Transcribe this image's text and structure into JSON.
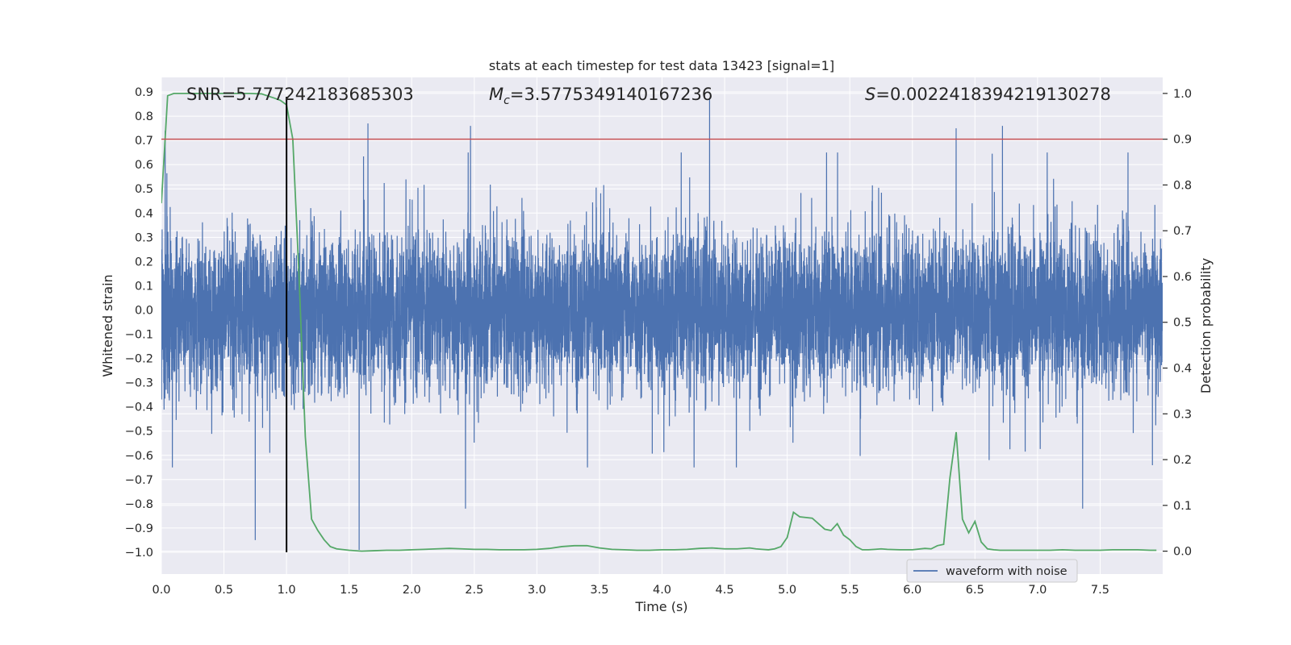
{
  "chart_data": {
    "type": "line",
    "title": "stats at each timestep for test data 13423 [signal=1]",
    "xlabel": "Time (s)",
    "ylabel_left": "Whitened strain",
    "ylabel_right": "Detection probability",
    "xlim": [
      0.0,
      8.0
    ],
    "ylim_left": [
      -1.09,
      0.96
    ],
    "ylim_right": [
      -0.05,
      1.035
    ],
    "x_ticks": [
      "0.0",
      "0.5",
      "1.0",
      "1.5",
      "2.0",
      "2.5",
      "3.0",
      "3.5",
      "4.0",
      "4.5",
      "5.0",
      "5.5",
      "6.0",
      "6.5",
      "7.0",
      "7.5"
    ],
    "y_left_ticks": [
      "0.9",
      "0.8",
      "0.7",
      "0.6",
      "0.5",
      "0.4",
      "0.3",
      "0.2",
      "0.1",
      "0.0",
      "−0.1",
      "−0.2",
      "−0.3",
      "−0.4",
      "−0.5",
      "−0.6",
      "−0.7",
      "−0.8",
      "−0.9",
      "−1.0"
    ],
    "y_right_ticks": [
      "1.0",
      "0.9",
      "0.8",
      "0.7",
      "0.6",
      "0.5",
      "0.4",
      "0.3",
      "0.2",
      "0.1",
      "0.0"
    ],
    "grid": true,
    "legend": {
      "position": "lower-right",
      "entries": [
        "waveform with noise"
      ]
    },
    "annotations": {
      "snr_prefix": "SNR=",
      "snr": "5.777242183685303",
      "mc_symbol": "M",
      "mc_sub": "c",
      "mc_eq": "=",
      "mc": "3.5775349140167236",
      "s_symbol": "S",
      "s_eq": "=",
      "s": "0.002241839421913027​8"
    },
    "colors": {
      "waveform": "#4c72b0",
      "probability": "#55a868",
      "threshold": "#c44e52",
      "marker": "#000000",
      "background": "#eaeaf2",
      "grid": "#ffffff"
    },
    "waveform_series": {
      "name": "waveform with noise",
      "axis": "left",
      "sample_rate_hz": 1024,
      "duration_s": 8.0,
      "approx_envelope": [
        -0.65,
        0.65
      ],
      "notable_peaks": [
        {
          "t": 0.03,
          "v": 0.74
        },
        {
          "t": 0.75,
          "v": -0.95
        },
        {
          "t": 1.58,
          "v": -0.99
        },
        {
          "t": 1.65,
          "v": 0.77
        },
        {
          "t": 2.43,
          "v": -0.82
        },
        {
          "t": 2.47,
          "v": 0.76
        },
        {
          "t": 4.38,
          "v": 0.87
        },
        {
          "t": 6.35,
          "v": 0.75
        },
        {
          "t": 6.72,
          "v": 0.76
        },
        {
          "t": 7.36,
          "v": -0.82
        }
      ]
    },
    "probability_series": {
      "name": "Detection probability",
      "axis": "right",
      "x": [
        0.0,
        0.05,
        0.1,
        0.15,
        0.2,
        0.3,
        0.4,
        0.5,
        0.6,
        0.7,
        0.8,
        0.9,
        0.95,
        1.0,
        1.05,
        1.1,
        1.15,
        1.2,
        1.25,
        1.3,
        1.35,
        1.4,
        1.5,
        1.6,
        1.7,
        1.8,
        1.9,
        2.0,
        2.1,
        2.2,
        2.3,
        2.4,
        2.5,
        2.6,
        2.7,
        2.8,
        2.9,
        3.0,
        3.1,
        3.2,
        3.3,
        3.4,
        3.5,
        3.6,
        3.7,
        3.8,
        3.9,
        4.0,
        4.1,
        4.2,
        4.3,
        4.4,
        4.5,
        4.6,
        4.7,
        4.75,
        4.8,
        4.85,
        4.9,
        4.95,
        5.0,
        5.05,
        5.1,
        5.2,
        5.25,
        5.3,
        5.35,
        5.4,
        5.45,
        5.5,
        5.55,
        5.6,
        5.65,
        5.7,
        5.75,
        5.8,
        5.9,
        6.0,
        6.1,
        6.15,
        6.2,
        6.25,
        6.3,
        6.35,
        6.4,
        6.45,
        6.5,
        6.55,
        6.6,
        6.65,
        6.7,
        6.8,
        6.9,
        7.0,
        7.1,
        7.2,
        7.3,
        7.4,
        7.5,
        7.6,
        7.7,
        7.8,
        7.9,
        7.95
      ],
      "y": [
        0.76,
        0.995,
        1.0,
        1.0,
        1.0,
        1.0,
        1.0,
        1.0,
        1.0,
        1.0,
        0.999,
        0.99,
        0.985,
        0.975,
        0.9,
        0.6,
        0.25,
        0.07,
        0.045,
        0.025,
        0.01,
        0.005,
        0.002,
        0.0,
        0.001,
        0.002,
        0.002,
        0.003,
        0.004,
        0.005,
        0.006,
        0.005,
        0.004,
        0.004,
        0.003,
        0.003,
        0.003,
        0.004,
        0.006,
        0.01,
        0.012,
        0.012,
        0.007,
        0.004,
        0.003,
        0.002,
        0.002,
        0.003,
        0.003,
        0.004,
        0.006,
        0.007,
        0.005,
        0.005,
        0.007,
        0.005,
        0.004,
        0.003,
        0.005,
        0.01,
        0.03,
        0.085,
        0.075,
        0.072,
        0.06,
        0.048,
        0.045,
        0.06,
        0.035,
        0.025,
        0.01,
        0.003,
        0.003,
        0.004,
        0.005,
        0.004,
        0.003,
        0.003,
        0.006,
        0.005,
        0.012,
        0.015,
        0.16,
        0.26,
        0.07,
        0.04,
        0.065,
        0.02,
        0.005,
        0.003,
        0.002,
        0.002,
        0.002,
        0.002,
        0.002,
        0.003,
        0.002,
        0.002,
        0.002,
        0.003,
        0.003,
        0.003,
        0.002,
        0.002
      ]
    },
    "threshold": {
      "axis": "right",
      "value": 0.9
    },
    "marker": {
      "x": 1.0,
      "from": -1.0,
      "to": 0.88,
      "axis": "left"
    }
  }
}
